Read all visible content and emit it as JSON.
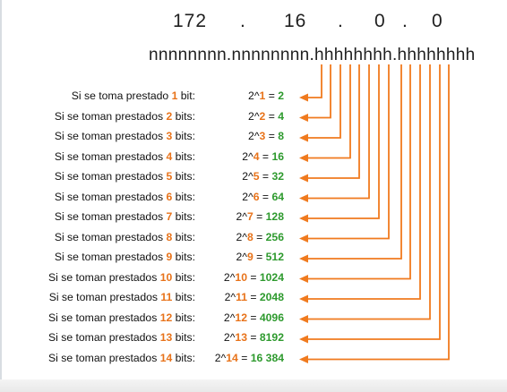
{
  "ip": {
    "octet1": "172",
    "dot1": ".",
    "octet2": "16",
    "dot2": ".",
    "octet3": "0",
    "dot3": ".",
    "octet4": "0"
  },
  "mask_pattern": "nnnnnnnn.nnnnnnnn.hhhhhhhh.hhhhhhhh",
  "colors": {
    "number": "#e8731a",
    "result": "#2e9a2e",
    "arrow": "#f07a1e",
    "text": "#111111"
  },
  "rows": [
    {
      "pre": "Si se toma prestado ",
      "n": "1",
      "post": " bit:",
      "cpre": "2^",
      "exp": "1",
      "eq": " = ",
      "result": "2"
    },
    {
      "pre": "Si se toman prestados ",
      "n": "2",
      "post": " bits:",
      "cpre": "2^",
      "exp": "2",
      "eq": " = ",
      "result": "4"
    },
    {
      "pre": "Si se toman prestados ",
      "n": "3",
      "post": " bits:",
      "cpre": "2^",
      "exp": "3",
      "eq": " = ",
      "result": "8"
    },
    {
      "pre": "Si se toman prestados ",
      "n": "4",
      "post": " bits:",
      "cpre": "2^",
      "exp": "4",
      "eq": " = ",
      "result": "16"
    },
    {
      "pre": "Si se toman prestados ",
      "n": "5",
      "post": " bits:",
      "cpre": "2^",
      "exp": "5",
      "eq": " = ",
      "result": "32"
    },
    {
      "pre": "Si se toman prestados ",
      "n": "6",
      "post": " bits:",
      "cpre": "2^",
      "exp": "6",
      "eq": " = ",
      "result": "64"
    },
    {
      "pre": "Si se toman prestados ",
      "n": "7",
      "post": " bits:",
      "cpre": "2^",
      "exp": "7",
      "eq": " = ",
      "result": "128"
    },
    {
      "pre": "Si se toman prestados ",
      "n": "8",
      "post": " bits:",
      "cpre": "2^",
      "exp": "8",
      "eq": " = ",
      "result": "256"
    },
    {
      "pre": "Si se toman prestados ",
      "n": "9",
      "post": " bits:",
      "cpre": "2^",
      "exp": "9",
      "eq": " = ",
      "result": "512"
    },
    {
      "pre": "Si se toman prestados ",
      "n": "10",
      "post": " bits:",
      "cpre": "2^",
      "exp": "10",
      "eq": " = ",
      "result": "1024"
    },
    {
      "pre": "Si se toman prestados ",
      "n": "11",
      "post": " bits:",
      "cpre": "2^",
      "exp": "11",
      "eq": " = ",
      "result": "2048"
    },
    {
      "pre": "Si se toman prestados ",
      "n": "12",
      "post": " bits:",
      "cpre": "2^",
      "exp": "12",
      "eq": " = ",
      "result": "4096"
    },
    {
      "pre": "Si se toman prestados ",
      "n": "13",
      "post": " bits:",
      "cpre": "2^",
      "exp": "13",
      "eq": " = ",
      "result": "8192"
    },
    {
      "pre": "Si se toman prestados ",
      "n": "14",
      "post": " bits:",
      "cpre": "2^",
      "exp": "14",
      "eq": " = ",
      "result": "16 384"
    }
  ]
}
